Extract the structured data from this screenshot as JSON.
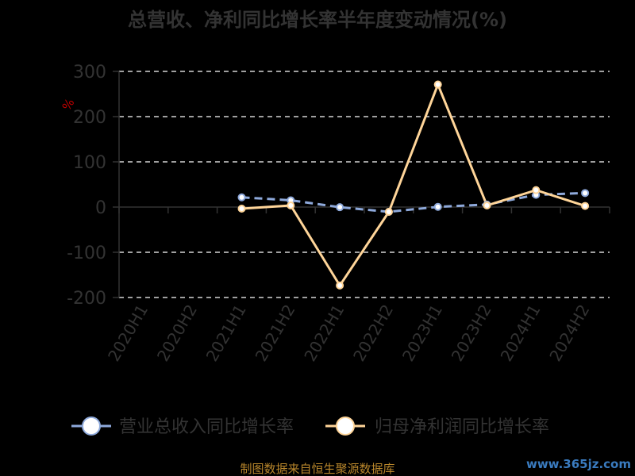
{
  "chart_data": {
    "type": "line",
    "title": "总营收、净利同比增长率半年度变动情况(%)",
    "unit": "%",
    "categories": [
      "2020H1",
      "2020H2",
      "2021H1",
      "2021H2",
      "2022H1",
      "2022H2",
      "2023H1",
      "2023H2",
      "2024H1",
      "2024H2"
    ],
    "ylim": [
      -200,
      300
    ],
    "yticks": [
      300,
      200,
      100,
      0,
      -100,
      -200
    ],
    "grid": true,
    "legend_position": "bottom",
    "series": [
      {
        "name": "营业总收入同比增长率",
        "color": "#8ea9db",
        "dashed": true,
        "values": [
          null,
          null,
          21.5,
          15,
          -0.3,
          -10.5,
          0.5,
          5.5,
          27,
          31
        ]
      },
      {
        "name": "归母净利润同比增长率",
        "color": "#ffd599",
        "dashed": false,
        "values": [
          null,
          null,
          -3.5,
          3.5,
          -173.5,
          -10.5,
          271,
          3.5,
          37.5,
          2.5
        ]
      }
    ]
  },
  "source": "制图数据来自恒生聚源数据库",
  "watermark": "www.365jz.com"
}
